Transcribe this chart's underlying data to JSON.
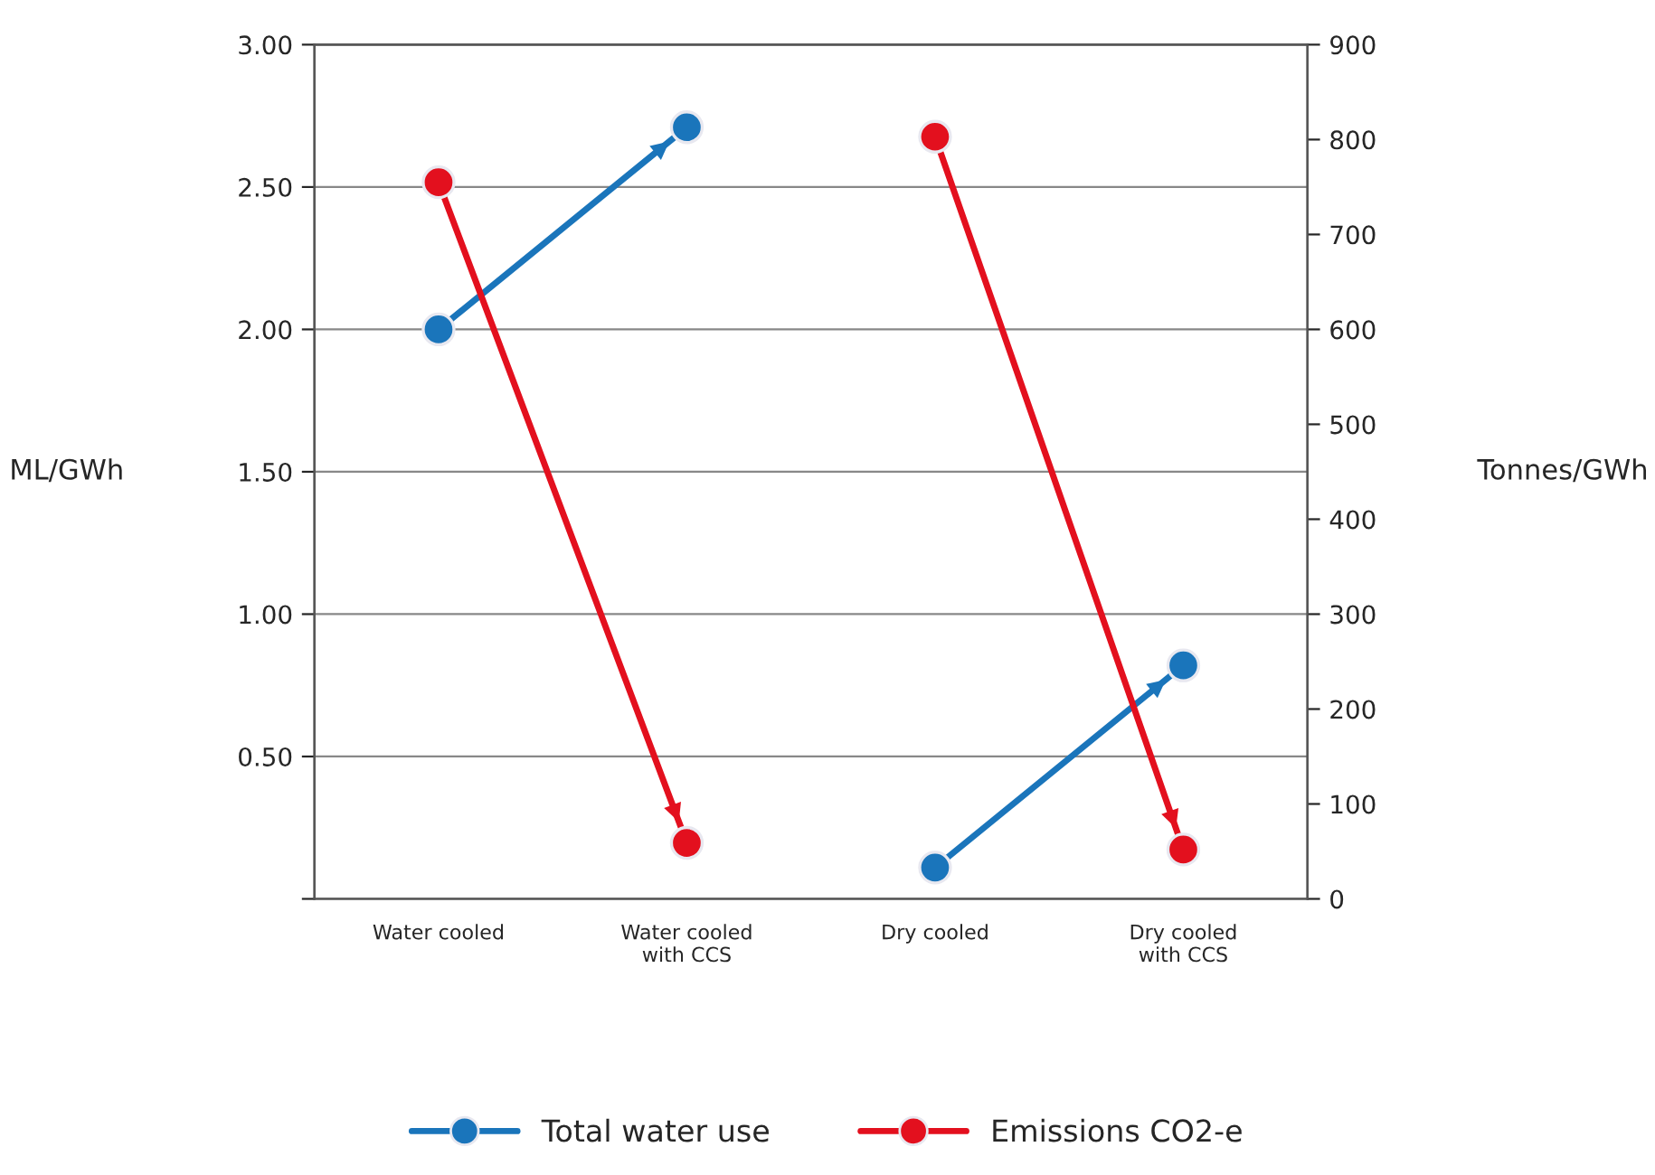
{
  "chart_data": {
    "type": "line",
    "categories": [
      "Water cooled",
      "Water cooled\nwith CCS",
      "Dry cooled",
      "Dry cooled\nwith CCS"
    ],
    "ylabel": "ML/GWh",
    "y2label": "Tonnes/GWh",
    "ylim": [
      0,
      3.0
    ],
    "yticks": [
      {
        "value": 0,
        "label": null
      },
      {
        "value": 0.5,
        "label": "0.50"
      },
      {
        "value": 1.0,
        "label": "1.00"
      },
      {
        "value": 1.5,
        "label": "1.50"
      },
      {
        "value": 2.0,
        "label": "2.00"
      },
      {
        "value": 2.5,
        "label": "2.50"
      },
      {
        "value": 3.0,
        "label": "3.00"
      }
    ],
    "y2lim": [
      0,
      900
    ],
    "y2ticks": [
      0,
      100,
      200,
      300,
      400,
      500,
      600,
      700,
      800,
      900
    ],
    "grid": "y",
    "legend": "bottom",
    "marker": "circle",
    "line_style": "solid",
    "series": [
      {
        "name": "Total water use",
        "color": "#1a75bb",
        "values": [
          2.0,
          2.71,
          null,
          null
        ]
      },
      {
        "color": "#1a75bb",
        "values": [
          null,
          null,
          0.11,
          0.82
        ]
      },
      {
        "name": "Emissions CO2-e",
        "color": "#e3101e",
        "axis": "y2",
        "values": [
          755,
          59,
          null,
          null
        ]
      },
      {
        "color": "#e3101e",
        "axis": "y2",
        "values": [
          null,
          null,
          803,
          52
        ]
      }
    ]
  }
}
